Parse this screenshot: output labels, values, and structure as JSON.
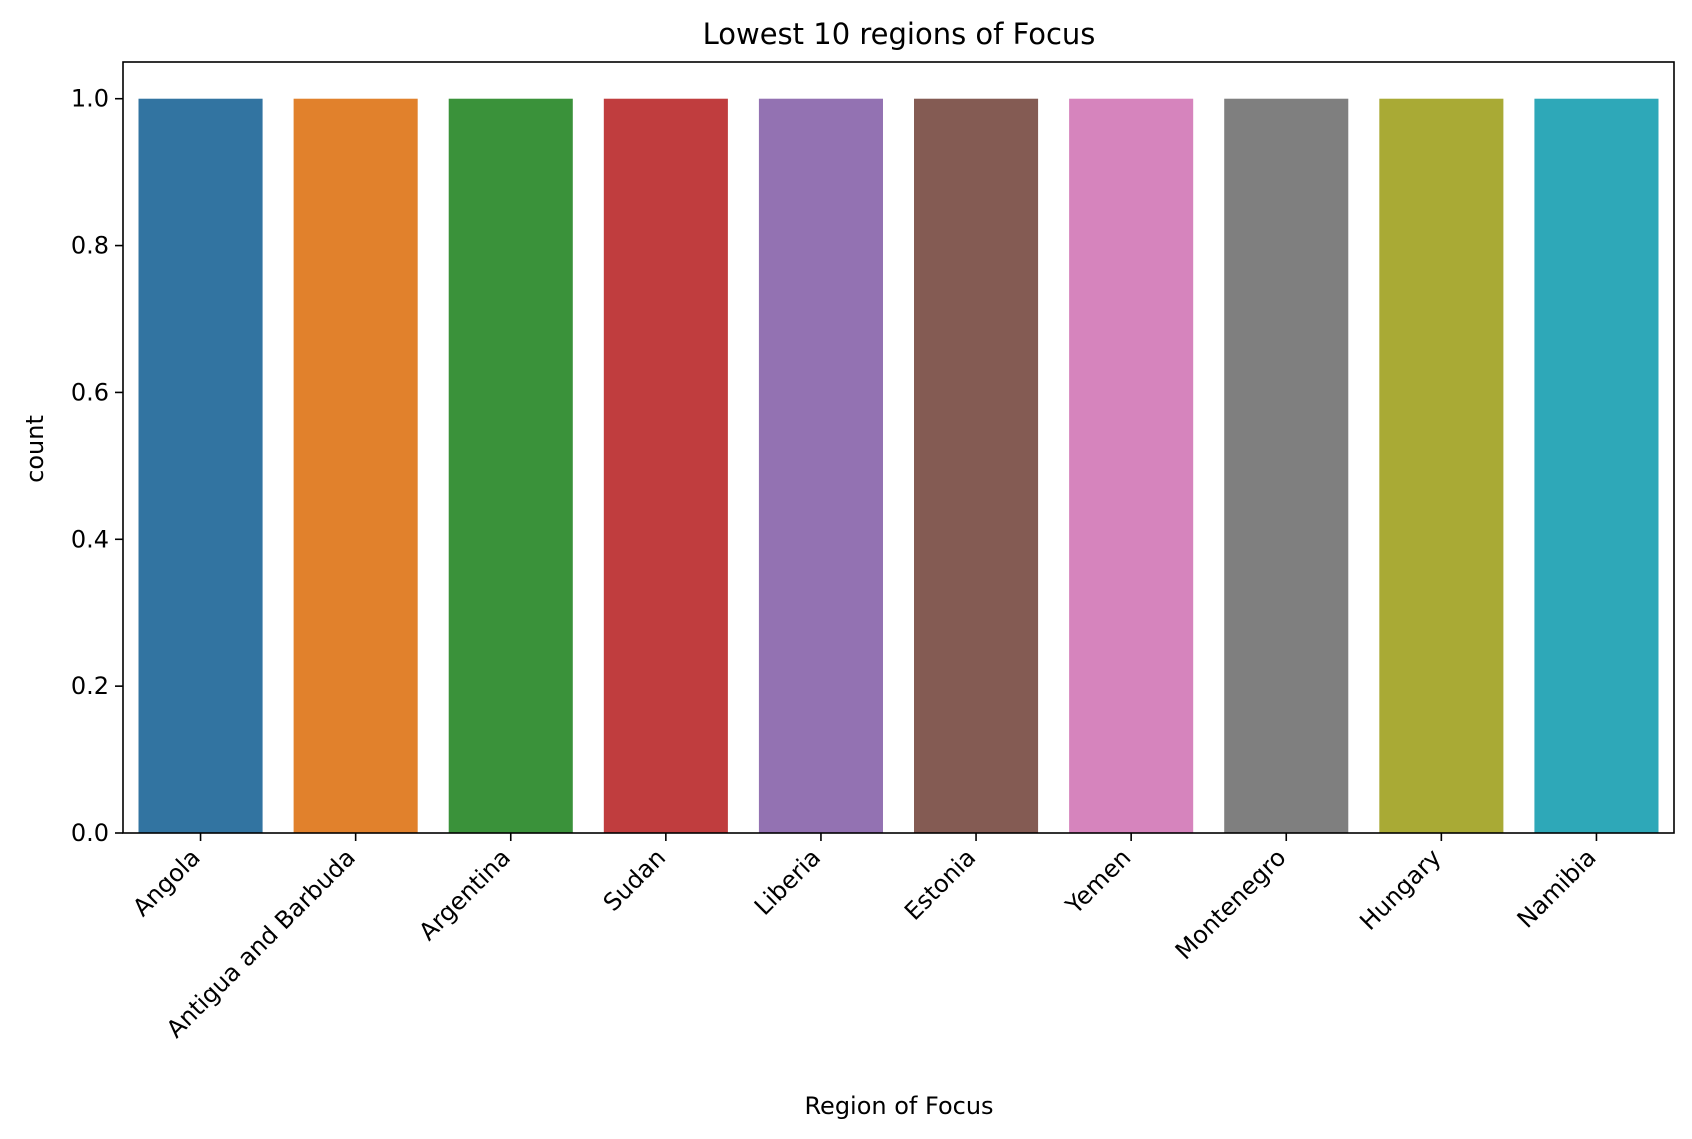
{
  "chart_data": {
    "type": "bar",
    "title": "Lowest 10 regions of Focus",
    "xlabel": "Region of Focus",
    "ylabel": "count",
    "categories": [
      "Angola",
      "Antigua and Barbuda",
      "Argentina",
      "Sudan",
      "Liberia",
      "Estonia",
      "Yemen",
      "Montenegro",
      "Hungary",
      "Namibia"
    ],
    "values": [
      1,
      1,
      1,
      1,
      1,
      1,
      1,
      1,
      1,
      1
    ],
    "colors": [
      "#3274a1",
      "#e1812c",
      "#3a923a",
      "#c03d3e",
      "#9372b2",
      "#845b53",
      "#d684bd",
      "#7f7f7f",
      "#a9aa35",
      "#2ea8b8"
    ],
    "ylim": [
      0,
      1.05
    ],
    "yticks": [
      0.0,
      0.2,
      0.4,
      0.6,
      0.8,
      1.0
    ],
    "ytick_labels": [
      "0.0",
      "0.2",
      "0.4",
      "0.6",
      "0.8",
      "1.0"
    ],
    "grid": false,
    "legend": "none"
  }
}
